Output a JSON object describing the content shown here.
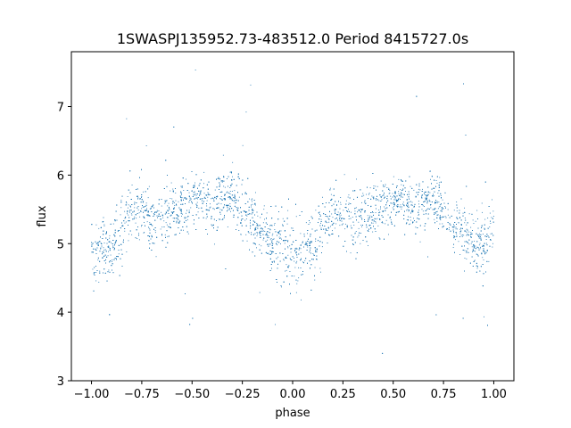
{
  "chart_data": {
    "type": "scatter",
    "title": "1SWASPJ135952.73-483512.0 Period 8415727.0s",
    "xlabel": "phase",
    "ylabel": "flux",
    "xlim": [
      -1.1,
      1.1
    ],
    "ylim": [
      3.0,
      7.8
    ],
    "xticks": [
      -1.0,
      -0.75,
      -0.5,
      -0.25,
      0.0,
      0.25,
      0.5,
      0.75,
      1.0
    ],
    "xtick_labels": [
      "−1.00",
      "−0.75",
      "−0.50",
      "−0.25",
      "0.00",
      "0.25",
      "0.50",
      "0.75",
      "1.00"
    ],
    "yticks": [
      3,
      4,
      5,
      6,
      7
    ],
    "ytick_labels": [
      "3",
      "4",
      "5",
      "6",
      "7"
    ],
    "grid": false,
    "marker_color": "#1f77b4",
    "series": [
      {
        "phase": [
          -1.0,
          -0.95,
          -0.9,
          -0.85,
          -0.8,
          -0.75,
          -0.7,
          -0.65,
          -0.6,
          -0.55,
          -0.5,
          -0.45,
          -0.4,
          -0.35,
          -0.3,
          -0.25,
          -0.2,
          -0.15,
          -0.1,
          -0.05,
          0.0,
          0.05,
          0.1,
          0.15,
          0.2,
          0.25,
          0.3,
          0.35,
          0.4,
          0.45,
          0.5,
          0.55,
          0.6,
          0.65,
          0.7,
          0.75,
          0.8,
          0.85,
          0.9,
          0.95,
          1.0
        ],
        "flux_median": [
          4.8,
          5.0,
          4.9,
          5.2,
          5.5,
          5.5,
          5.3,
          5.4,
          5.5,
          5.5,
          5.6,
          5.7,
          5.5,
          5.6,
          5.7,
          5.5,
          5.3,
          5.2,
          5.0,
          5.0,
          4.8,
          5.0,
          4.9,
          5.2,
          5.5,
          5.5,
          5.3,
          5.4,
          5.5,
          5.5,
          5.6,
          5.7,
          5.5,
          5.6,
          5.7,
          5.5,
          5.3,
          5.2,
          5.0,
          5.0,
          5.3
        ],
        "flux_spread": [
          0.45,
          0.4,
          0.4,
          0.4,
          0.35,
          0.35,
          0.4,
          0.4,
          0.35,
          0.35,
          0.3,
          0.3,
          0.35,
          0.35,
          0.3,
          0.35,
          0.35,
          0.35,
          0.4,
          0.4,
          0.45,
          0.4,
          0.4,
          0.4,
          0.35,
          0.35,
          0.4,
          0.4,
          0.35,
          0.35,
          0.3,
          0.3,
          0.35,
          0.35,
          0.3,
          0.35,
          0.35,
          0.35,
          0.4,
          0.4,
          0.3
        ]
      }
    ]
  }
}
